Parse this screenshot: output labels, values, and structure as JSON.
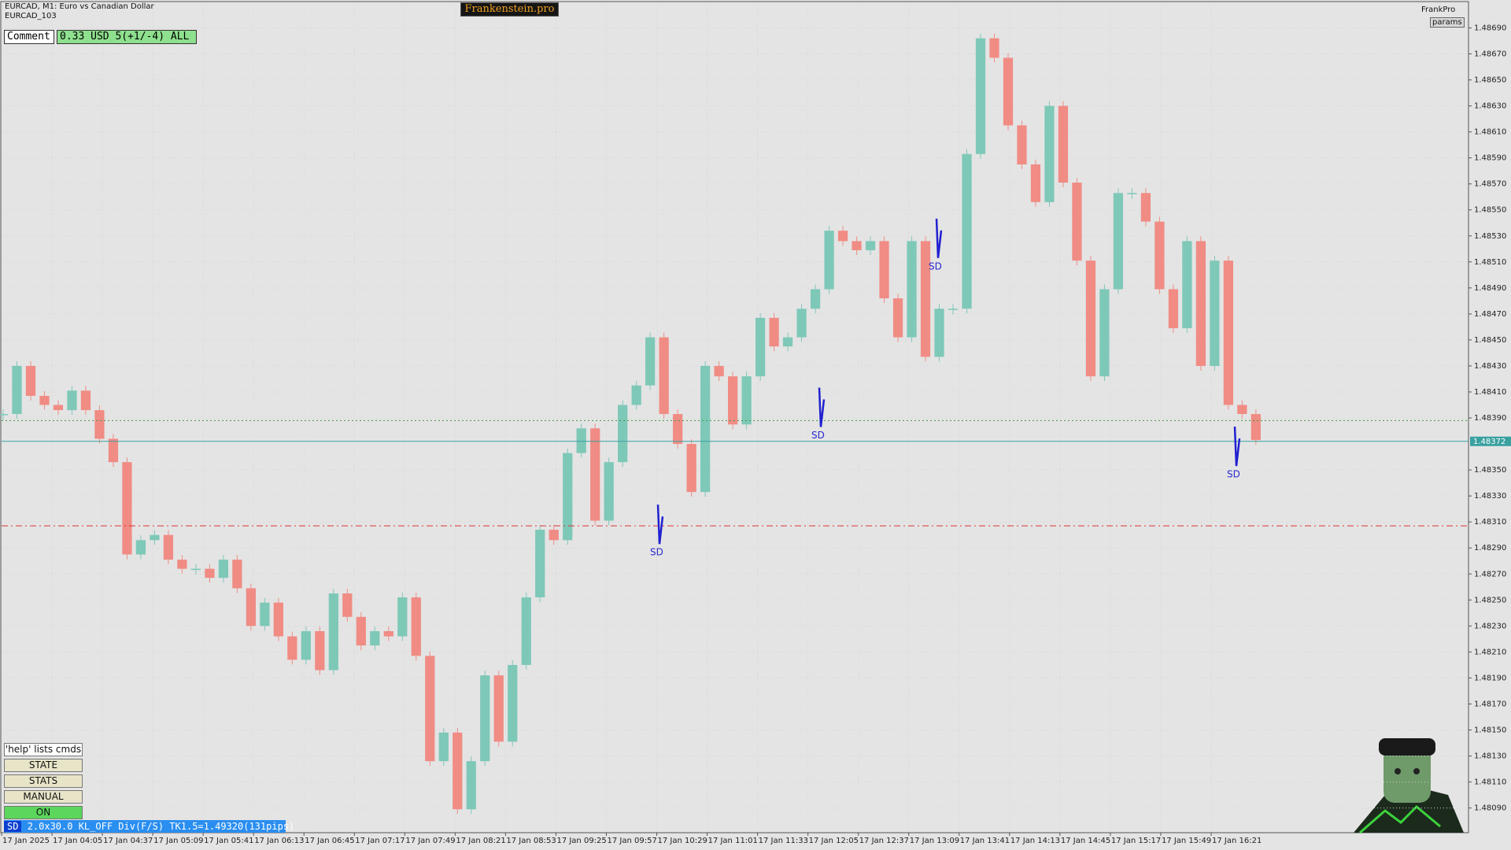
{
  "header": {
    "symbol_line": "EURCAD, M1:  Euro vs Canadian Dollar",
    "account": "EURCAD_103",
    "brand": "Frankenstein.pro",
    "user": "FrankPro",
    "params": "params"
  },
  "comment": {
    "label": "Comment",
    "text": "0.33 USD 5(+1/-4) ALL"
  },
  "panel": {
    "help": "'help' lists cmds",
    "buttons": [
      "STATE",
      "STATS",
      "MANUAL",
      "ON"
    ]
  },
  "status": {
    "tag": "SD",
    "text": "2.0x30.0 KL_OFF Div(F/S) TK1.5=1.49320(131pips)"
  },
  "chart_data": {
    "type": "candlestick",
    "grid": true,
    "x_labels": [
      "17 Jan 2025",
      "17 Jan 04:05",
      "17 Jan 04:37",
      "17 Jan 05:09",
      "17 Jan 05:41",
      "17 Jan 06:13",
      "17 Jan 06:45",
      "17 Jan 07:17",
      "17 Jan 07:49",
      "17 Jan 08:21",
      "17 Jan 08:53",
      "17 Jan 09:25",
      "17 Jan 09:57",
      "17 Jan 10:29",
      "17 Jan 11:01",
      "17 Jan 11:33",
      "17 Jan 12:05",
      "17 Jan 12:37",
      "17 Jan 13:09",
      "17 Jan 13:41",
      "17 Jan 14:13",
      "17 Jan 14:45",
      "17 Jan 15:17",
      "17 Jan 15:49",
      "17 Jan 16:21"
    ],
    "ylim": [
      1.48071,
      1.4871
    ],
    "yticks": [
      {
        "value": 1.4869,
        "label": "1.48690"
      },
      {
        "value": 1.4867,
        "label": "1.48670"
      },
      {
        "value": 1.4865,
        "label": "1.48650"
      },
      {
        "value": 1.4863,
        "label": "1.48630"
      },
      {
        "value": 1.4861,
        "label": "1.48610"
      },
      {
        "value": 1.4859,
        "label": "1.48590"
      },
      {
        "value": 1.4857,
        "label": "1.48570"
      },
      {
        "value": 1.4855,
        "label": "1.48550"
      },
      {
        "value": 1.4853,
        "label": "1.48530"
      },
      {
        "value": 1.4851,
        "label": "1.48510"
      },
      {
        "value": 1.4849,
        "label": "1.48490"
      },
      {
        "value": 1.4847,
        "label": "1.48470"
      },
      {
        "value": 1.4845,
        "label": "1.48450"
      },
      {
        "value": 1.4843,
        "label": "1.48430"
      },
      {
        "value": 1.4841,
        "label": "1.48410"
      },
      {
        "value": 1.4839,
        "label": "1.48390"
      },
      {
        "value": 1.4835,
        "label": "1.48350"
      },
      {
        "value": 1.4833,
        "label": "1.48330"
      },
      {
        "value": 1.4831,
        "label": "1.48310"
      },
      {
        "value": 1.4829,
        "label": "1.48290"
      },
      {
        "value": 1.4827,
        "label": "1.48270"
      },
      {
        "value": 1.4825,
        "label": "1.48250"
      },
      {
        "value": 1.4823,
        "label": "1.48230"
      },
      {
        "value": 1.4821,
        "label": "1.48210"
      },
      {
        "value": 1.4819,
        "label": "1.48190"
      },
      {
        "value": 1.4817,
        "label": "1.48170"
      },
      {
        "value": 1.4815,
        "label": "1.48150"
      },
      {
        "value": 1.4813,
        "label": "1.48130"
      },
      {
        "value": 1.4811,
        "label": "1.48110"
      },
      {
        "value": 1.4809,
        "label": "1.48090"
      }
    ],
    "closes": [
      1.48393,
      1.4843,
      1.48407,
      1.484,
      1.48396,
      1.48411,
      1.48396,
      1.48374,
      1.48356,
      1.48285,
      1.48296,
      1.483,
      1.48281,
      1.48274,
      1.48274,
      1.48267,
      1.48281,
      1.48259,
      1.4823,
      1.48248,
      1.48222,
      1.48204,
      1.48226,
      1.48196,
      1.48255,
      1.48237,
      1.48215,
      1.48226,
      1.48222,
      1.48252,
      1.48207,
      1.48126,
      1.48148,
      1.48089,
      1.48126,
      1.48192,
      1.48141,
      1.482,
      1.48252,
      1.48304,
      1.48296,
      1.48363,
      1.48382,
      1.48311,
      1.48356,
      1.484,
      1.48415,
      1.48452,
      1.48393,
      1.4837,
      1.48333,
      1.4843,
      1.48422,
      1.48385,
      1.48422,
      1.48467,
      1.48445,
      1.48452,
      1.48474,
      1.48489,
      1.48534,
      1.48526,
      1.48519,
      1.48526,
      1.48482,
      1.48452,
      1.48526,
      1.48437,
      1.48474,
      1.48474,
      1.48593,
      1.48682,
      1.48667,
      1.48615,
      1.48585,
      1.48556,
      1.4863,
      1.48571,
      1.48511,
      1.48422,
      1.48489,
      1.48563,
      1.48563,
      1.48541,
      1.48489,
      1.48459,
      1.48526,
      1.4843,
      1.48511,
      1.484,
      1.48393,
      1.48373
    ],
    "up_color": "#7ec8b8",
    "down_color": "#f08c84",
    "levels": [
      {
        "value": 1.48388,
        "color": "#3a9a3a",
        "style": "dotted"
      },
      {
        "value": 1.48372,
        "color": "#3aa0a0",
        "style": "solid",
        "label": "1.48372"
      },
      {
        "value": 1.48307,
        "color": "#dd3333",
        "style": "dashdot"
      }
    ],
    "signals": [
      {
        "label": "SD",
        "price": 1.4829
      },
      {
        "label": "SD",
        "price": 1.4838
      },
      {
        "label": "SD",
        "price": 1.4851
      },
      {
        "label": "SD",
        "price": 1.4835
      }
    ]
  }
}
